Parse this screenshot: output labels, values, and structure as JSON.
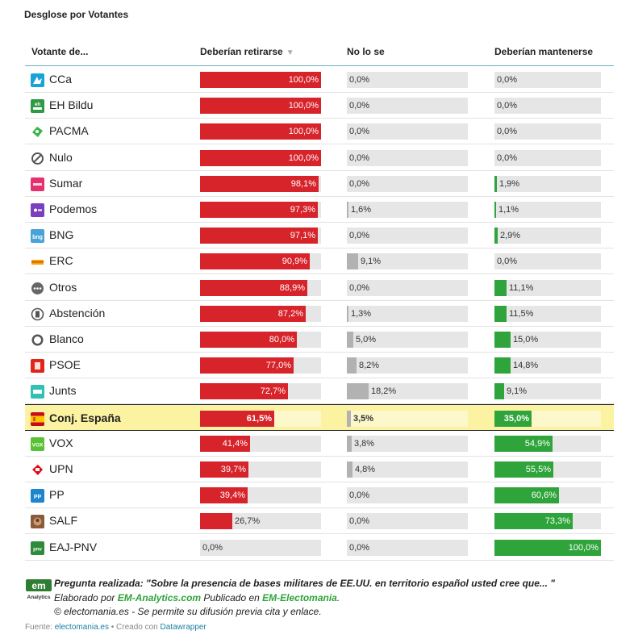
{
  "title": "Desglose por Votantes",
  "headers": {
    "voter": "Votante de...",
    "col1": "Deberían retirarse",
    "col2": "No lo se",
    "col3": "Deberían mantenerse",
    "sort_icon": "▼"
  },
  "colors": {
    "retirarse": "#d7232a",
    "nolose": "#b2b2b2",
    "mantenerse": "#2ea43a",
    "highlight": "#fbf3a1"
  },
  "chart_data": {
    "type": "table",
    "columns": [
      "Deberían retirarse",
      "No lo se",
      "Deberían mantenerse"
    ],
    "highlighted": "Conj. España",
    "rows": [
      {
        "name": "CCa",
        "icon": "cca-logo",
        "v": [
          100.0,
          0.0,
          0.0
        ],
        "t": [
          "100,0%",
          "0,0%",
          "0,0%"
        ]
      },
      {
        "name": "EH Bildu",
        "icon": "eh-bildu-logo",
        "v": [
          100.0,
          0.0,
          0.0
        ],
        "t": [
          "100,0%",
          "0,0%",
          "0,0%"
        ]
      },
      {
        "name": "PACMA",
        "icon": "pacma-logo",
        "v": [
          100.0,
          0.0,
          0.0
        ],
        "t": [
          "100,0%",
          "0,0%",
          "0,0%"
        ]
      },
      {
        "name": "Nulo",
        "icon": "null-vote-icon",
        "v": [
          100.0,
          0.0,
          0.0
        ],
        "t": [
          "100,0%",
          "0,0%",
          "0,0%"
        ]
      },
      {
        "name": "Sumar",
        "icon": "sumar-logo",
        "v": [
          98.1,
          0.0,
          1.9
        ],
        "t": [
          "98,1%",
          "0,0%",
          "1,9%"
        ]
      },
      {
        "name": "Podemos",
        "icon": "podemos-logo",
        "v": [
          97.3,
          1.6,
          1.1
        ],
        "t": [
          "97,3%",
          "1,6%",
          "1,1%"
        ]
      },
      {
        "name": "BNG",
        "icon": "bng-logo",
        "v": [
          97.1,
          0.0,
          2.9
        ],
        "t": [
          "97,1%",
          "0,0%",
          "2,9%"
        ]
      },
      {
        "name": "ERC",
        "icon": "erc-logo",
        "v": [
          90.9,
          9.1,
          0.0
        ],
        "t": [
          "90,9%",
          "9,1%",
          "0,0%"
        ]
      },
      {
        "name": "Otros",
        "icon": "others-icon",
        "v": [
          88.9,
          0.0,
          11.1
        ],
        "t": [
          "88,9%",
          "0,0%",
          "11,1%"
        ]
      },
      {
        "name": "Abstención",
        "icon": "abstention-icon",
        "v": [
          87.2,
          1.3,
          11.5
        ],
        "t": [
          "87,2%",
          "1,3%",
          "11,5%"
        ]
      },
      {
        "name": "Blanco",
        "icon": "blank-vote-icon",
        "v": [
          80.0,
          5.0,
          15.0
        ],
        "t": [
          "80,0%",
          "5,0%",
          "15,0%"
        ]
      },
      {
        "name": "PSOE",
        "icon": "psoe-logo",
        "v": [
          77.0,
          8.2,
          14.8
        ],
        "t": [
          "77,0%",
          "8,2%",
          "14,8%"
        ]
      },
      {
        "name": "Junts",
        "icon": "junts-logo",
        "v": [
          72.7,
          18.2,
          9.1
        ],
        "t": [
          "72,7%",
          "18,2%",
          "9,1%"
        ]
      },
      {
        "name": "Conj. España",
        "icon": "spain-flag-icon",
        "v": [
          61.5,
          3.5,
          35.0
        ],
        "t": [
          "61,5%",
          "3,5%",
          "35,0%"
        ],
        "highlight": true
      },
      {
        "name": "VOX",
        "icon": "vox-logo",
        "v": [
          41.4,
          3.8,
          54.9
        ],
        "t": [
          "41,4%",
          "3,8%",
          "54,9%"
        ]
      },
      {
        "name": "UPN",
        "icon": "upn-logo",
        "v": [
          39.7,
          4.8,
          55.5
        ],
        "t": [
          "39,7%",
          "4,8%",
          "55,5%"
        ]
      },
      {
        "name": "PP",
        "icon": "pp-logo",
        "v": [
          39.4,
          0.0,
          60.6
        ],
        "t": [
          "39,4%",
          "0,0%",
          "60,6%"
        ]
      },
      {
        "name": "SALF",
        "icon": "salf-logo",
        "v": [
          26.7,
          0.0,
          73.3
        ],
        "t": [
          "26,7%",
          "0,0%",
          "73,3%"
        ]
      },
      {
        "name": "EAJ-PNV",
        "icon": "eaj-pnv-logo",
        "v": [
          0.0,
          0.0,
          100.0
        ],
        "t": [
          "0,0%",
          "0,0%",
          "100,0%"
        ]
      }
    ]
  },
  "footer": {
    "logo_name": "em-analytics-logo",
    "logo_text_top": "em",
    "logo_text_bottom": "Analytics",
    "question_label": "Pregunta realizada:",
    "question_text": " \"Sobre la presencia de bases militares de EE.UU. en territorio español usted cree que... \"",
    "line2_a": "Elaborado por ",
    "line2_b": "EM-Analytics.com",
    "line2_c": " Publicado en ",
    "line2_d": "EM-Electomania",
    "line2_e": ".",
    "line3": "© electomania.es - Se permite su difusión previa cita y enlace."
  },
  "source": {
    "label": "Fuente: ",
    "link": "electomania.es",
    "sep": " • Creado con ",
    "tool": "Datawrapper"
  }
}
